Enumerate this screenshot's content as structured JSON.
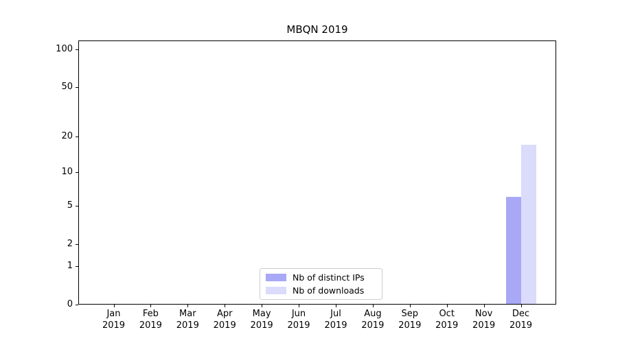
{
  "chart_data": {
    "type": "bar",
    "title": "MBQN 2019",
    "categories": [
      "Jan",
      "Feb",
      "Mar",
      "Apr",
      "May",
      "Jun",
      "Jul",
      "Aug",
      "Sep",
      "Oct",
      "Nov",
      "Dec"
    ],
    "category_year": "2019",
    "series": [
      {
        "name": "Nb of distinct IPs",
        "color": "rgba(110,110,240,0.60)",
        "values": [
          0,
          0,
          0,
          0,
          0,
          0,
          0,
          0,
          0,
          0,
          0,
          6
        ]
      },
      {
        "name": "Nb of downloads",
        "color": "rgba(110,110,240,0.25)",
        "values": [
          0,
          0,
          0,
          0,
          0,
          0,
          0,
          0,
          0,
          0,
          0,
          17
        ]
      }
    ],
    "yscale": "log1p",
    "ylim": [
      0,
      118
    ],
    "yticks": [
      0,
      1,
      2,
      5,
      10,
      20,
      50,
      100
    ],
    "major_gridlines": [
      1,
      10,
      100
    ],
    "minor_gridlines": [
      2,
      3,
      4,
      5,
      6,
      7,
      8,
      9,
      20,
      30,
      40,
      50,
      60,
      70,
      80,
      90
    ],
    "grid": "on",
    "xlabel": "",
    "ylabel": "",
    "legend": {
      "position": "lower center",
      "entries": [
        "Nb of distinct IPs",
        "Nb of downloads"
      ]
    }
  }
}
